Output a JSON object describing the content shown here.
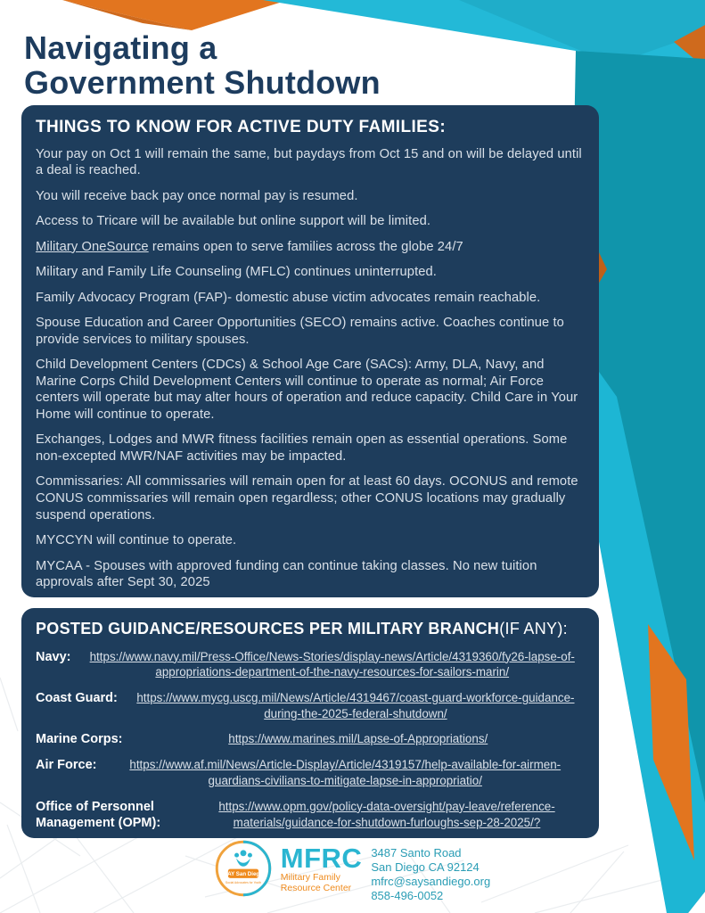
{
  "page": {
    "title_line1": "Navigating a",
    "title_line2": "Government Shutdown"
  },
  "colors": {
    "navy_box": "#1e3d5c",
    "title_navy": "#1d3c5e",
    "cyan_bright": "#23b9d7",
    "teal_panel": "#1095ab",
    "orange_accent": "#e2751f",
    "body_text_light": "#d9e0e8",
    "footer_teal": "#2ab5d1",
    "footer_orange": "#ef8b1e"
  },
  "things_box": {
    "heading": "THINGS TO KNOW FOR ACTIVE DUTY FAMILIES:",
    "items": [
      {
        "text": "Your pay on Oct 1 will remain the same, but paydays from Oct 15 and on will be delayed until a deal is reached."
      },
      {
        "text": "You will receive back pay once normal pay is resumed."
      },
      {
        "text": "Access to Tricare will be available but online support will be limited."
      },
      {
        "u": "Military OneSource",
        "text": " remains open to serve families across the globe 24/7"
      },
      {
        "text": "Military and Family Life Counseling (MFLC) continues uninterrupted."
      },
      {
        "text": "Family Advocacy Program (FAP)- domestic abuse victim advocates remain reachable."
      },
      {
        "text": "Spouse Education and Career Opportunities (SECO) remains active. Coaches continue to provide services to military spouses."
      },
      {
        "text": "Child Development Centers (CDCs) & School Age Care (SACs): Army, DLA, Navy, and Marine Corps Child Development Centers will continue to operate as normal; Air Force centers will operate but may alter hours of operation and reduce capacity. Child Care in Your Home will continue to operate."
      },
      {
        "text": "Exchanges, Lodges and MWR fitness facilities remain open as essential operations. Some non-excepted MWR/NAF activities may be impacted."
      },
      {
        "text": "Commissaries: All commissaries will remain open for at least 60 days. OCONUS and remote CONUS commissaries will remain open regardless; other CONUS locations may gradually suspend operations."
      },
      {
        "text": "MYCCYN will continue to operate."
      },
      {
        "text": "MYCAA - Spouses with approved funding can continue taking classes. No new tuition approvals after Sept 30, 2025"
      }
    ]
  },
  "resources_box": {
    "heading_bold": "POSTED GUIDANCE/RESOURCES PER MILITARY BRANCH",
    "heading_light": "(IF ANY):",
    "entries": [
      {
        "branch": "Navy:",
        "url": "https://www.navy.mil/Press-Office/News-Stories/display-news/Article/4319360/fy26-lapse-of-appropriations-department-of-the-navy-resources-for-sailors-marin/"
      },
      {
        "branch": "Coast Guard:",
        "url": "https://www.mycg.uscg.mil/News/Article/4319467/coast-guard-workforce-guidance-during-the-2025-federal-shutdown/"
      },
      {
        "branch": "Marine Corps:",
        "url": "https://www.marines.mil/Lapse-of-Appropriations/"
      },
      {
        "branch": "Air Force:",
        "url": "https://www.af.mil/News/Article-Display/Article/4319157/help-available-for-airmen-guardians-civilians-to-mitigate-lapse-in-appropriatio/"
      },
      {
        "branch": "Office of Personnel Management (OPM):",
        "url": "https://www.opm.gov/policy-data-oversight/pay-leave/reference-materials/guidance-for-shutdown-furloughs-sep-28-2025/?"
      }
    ]
  },
  "footer": {
    "logo": {
      "org_abbr": "MFRC",
      "org_name_line1": "Military Family",
      "org_name_line2": "Resource Center",
      "say_label": "SAY San Diego",
      "say_sub": "Social Advocates for Youth"
    },
    "contact": {
      "address_line1": "3487 Santo Road",
      "address_line2": "San Diego CA 92124",
      "email": "mfrc@saysandiego.org",
      "phone": "858-496-0052"
    }
  }
}
